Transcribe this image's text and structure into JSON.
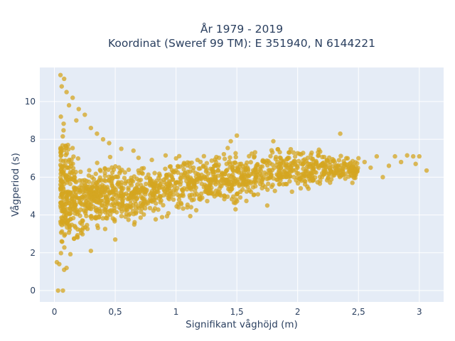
{
  "chart_data": {
    "type": "scatter",
    "title_lines": [
      "År 1979 - 2019",
      "Koordinat (Sweref 99 TM): E 351940, N 6144221"
    ],
    "xlabel": "Signifikant våghöjd (m)",
    "ylabel": "Vågperiod (s)",
    "xlim": [
      -0.12,
      3.2
    ],
    "ylim": [
      -0.6,
      11.8
    ],
    "x_ticks": [
      0,
      0.5,
      1,
      1.5,
      2,
      2.5,
      3
    ],
    "x_tick_labels": [
      "0",
      "0,5",
      "1",
      "1,5",
      "2",
      "2,5",
      "3"
    ],
    "y_ticks": [
      0,
      2,
      4,
      6,
      8,
      10
    ],
    "y_tick_labels": [
      "0",
      "2",
      "4",
      "6",
      "8",
      "10"
    ],
    "grid": true,
    "legend": "none",
    "series": [
      {
        "color": "#D4A520",
        "envelope": [
          {
            "x": 0.05,
            "y_low": 1.3,
            "y_high": 9.8
          },
          {
            "x": 0.1,
            "y_low": 1.4,
            "y_high": 9.0
          },
          {
            "x": 0.2,
            "y_low": 2.0,
            "y_high": 7.8
          },
          {
            "x": 0.3,
            "y_low": 2.4,
            "y_high": 7.4
          },
          {
            "x": 0.5,
            "y_low": 2.8,
            "y_high": 7.2
          },
          {
            "x": 0.75,
            "y_low": 3.3,
            "y_high": 7.3
          },
          {
            "x": 1.0,
            "y_low": 3.7,
            "y_high": 7.5
          },
          {
            "x": 1.25,
            "y_low": 3.9,
            "y_high": 7.7
          },
          {
            "x": 1.5,
            "y_low": 4.2,
            "y_high": 7.9
          },
          {
            "x": 1.75,
            "y_low": 4.6,
            "y_high": 7.9
          },
          {
            "x": 2.0,
            "y_low": 5.0,
            "y_high": 7.8
          },
          {
            "x": 2.25,
            "y_low": 5.4,
            "y_high": 7.5
          },
          {
            "x": 2.5,
            "y_low": 5.8,
            "y_high": 7.0
          }
        ],
        "points": [
          [
            0.03,
            0.0
          ],
          [
            0.07,
            0.0
          ],
          [
            0.05,
            11.4
          ],
          [
            0.08,
            11.2
          ],
          [
            0.06,
            10.8
          ],
          [
            0.1,
            10.5
          ],
          [
            0.15,
            10.2
          ],
          [
            0.12,
            9.8
          ],
          [
            0.2,
            9.6
          ],
          [
            0.25,
            9.3
          ],
          [
            0.18,
            9.0
          ],
          [
            0.3,
            8.6
          ],
          [
            0.35,
            8.3
          ],
          [
            0.4,
            8.0
          ],
          [
            0.45,
            7.8
          ],
          [
            0.55,
            7.5
          ],
          [
            0.65,
            7.4
          ],
          [
            1.5,
            8.2
          ],
          [
            1.45,
            7.9
          ],
          [
            1.8,
            7.9
          ],
          [
            2.35,
            8.3
          ],
          [
            2.4,
            7.0
          ],
          [
            2.5,
            7.0
          ],
          [
            2.55,
            6.8
          ],
          [
            2.6,
            6.5
          ],
          [
            2.65,
            7.1
          ],
          [
            2.7,
            6.0
          ],
          [
            2.75,
            6.6
          ],
          [
            2.8,
            7.1
          ],
          [
            2.85,
            6.8
          ],
          [
            2.9,
            7.15
          ],
          [
            2.95,
            7.1
          ],
          [
            3.0,
            7.1
          ],
          [
            2.97,
            6.7
          ],
          [
            3.06,
            6.35
          ],
          [
            2.2,
            6.0
          ],
          [
            2.3,
            6.2
          ],
          [
            2.45,
            5.7
          ],
          [
            0.02,
            1.5
          ],
          [
            0.04,
            1.4
          ],
          [
            0.08,
            1.1
          ],
          [
            0.1,
            1.2
          ],
          [
            1.75,
            4.5
          ],
          [
            0.3,
            2.1
          ],
          [
            0.5,
            2.7
          ]
        ]
      }
    ]
  }
}
